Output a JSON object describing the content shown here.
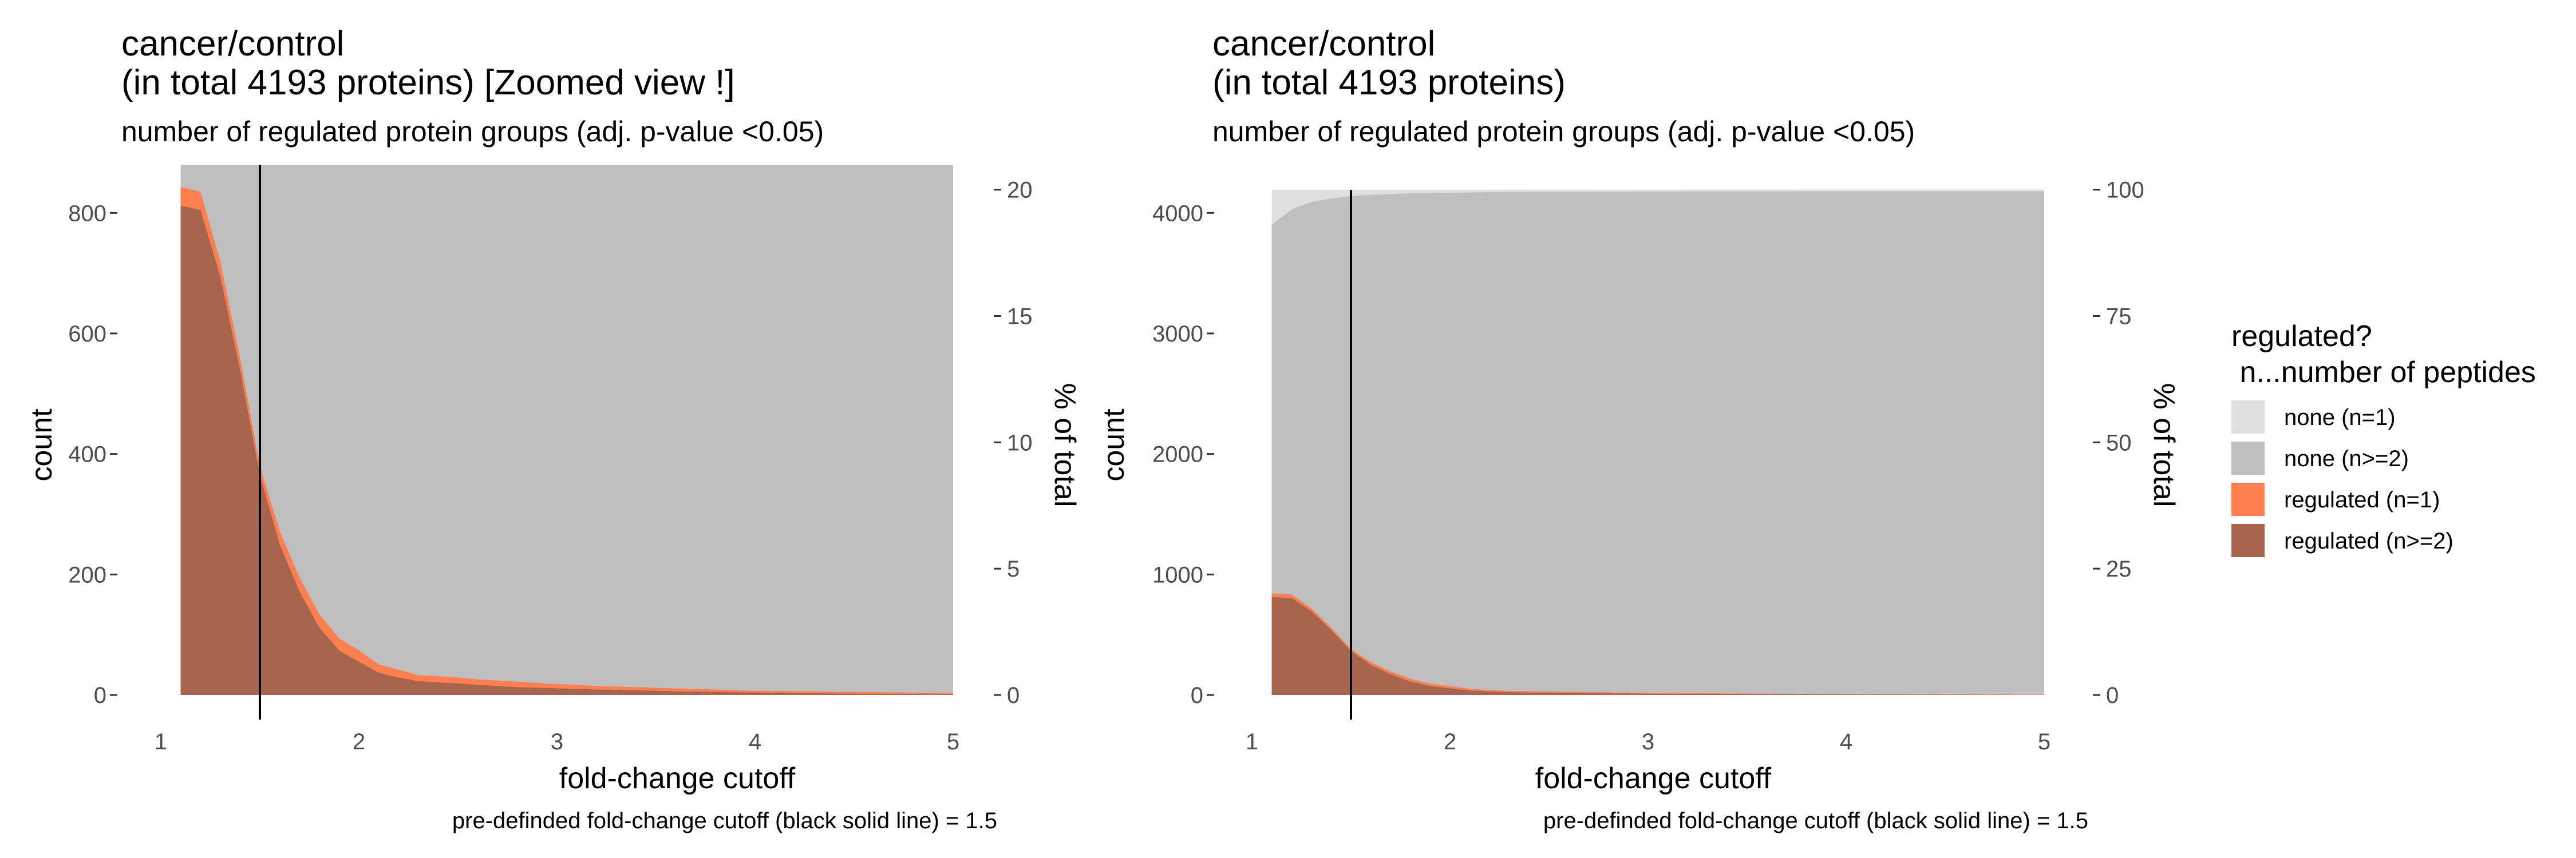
{
  "chart_data": [
    {
      "type": "area",
      "title_line1": "cancer/control",
      "title_line2": "(in total 4193 proteins)  [Zoomed view !]",
      "subtitle": "number of regulated protein groups (adj. p-value <0.05)",
      "xlabel": "fold-change cutoff",
      "ylabel": "count",
      "y2label": "% of total",
      "caption": "pre-definded fold-change cutoff (black solid line) = 1.5",
      "xlim": [
        1,
        5
      ],
      "ylim": [
        0,
        880
      ],
      "x_ticks": [
        1,
        2,
        3,
        4,
        5
      ],
      "y_ticks": [
        0,
        200,
        400,
        600,
        800
      ],
      "y2_ticks": [
        0,
        5,
        10,
        15,
        20
      ],
      "total": 4193,
      "cutoff": 1.5,
      "x": [
        1.1,
        1.2,
        1.3,
        1.4,
        1.5,
        1.6,
        1.7,
        1.8,
        1.9,
        2.0,
        2.1,
        2.2,
        2.3,
        2.4,
        2.5,
        2.6,
        2.7,
        2.8,
        2.9,
        3.0,
        3.2,
        3.4,
        3.6,
        3.8,
        4.0,
        4.5,
        5.0
      ],
      "series": [
        {
          "name": "regulated (n=1)",
          "color": "#FF7F50",
          "values": [
            843,
            835,
            720,
            560,
            380,
            272,
            195,
            134,
            94,
            74,
            51,
            42,
            33,
            31,
            29,
            26,
            24,
            22,
            20,
            18,
            15,
            13,
            11,
            9,
            7,
            5,
            3
          ]
        },
        {
          "name": "regulated (n>=2)",
          "color": "#A8654E",
          "values": [
            812,
            805,
            695,
            540,
            365,
            250,
            172,
            112,
            74,
            55,
            37,
            29,
            23,
            21,
            19,
            17,
            15,
            13,
            12,
            11,
            9,
            8,
            6,
            5,
            4,
            2,
            1
          ]
        }
      ]
    },
    {
      "type": "area",
      "title_line1": "cancer/control",
      "title_line2": "(in total 4193 proteins)",
      "subtitle": "number of regulated protein groups (adj. p-value <0.05)",
      "xlabel": "fold-change cutoff",
      "ylabel": "count",
      "y2label": "% of total",
      "caption": "pre-definded fold-change cutoff (black solid line) = 1.5",
      "xlim": [
        1,
        5
      ],
      "ylim": [
        0,
        4400
      ],
      "x_ticks": [
        1,
        2,
        3,
        4,
        5
      ],
      "y_ticks": [
        0,
        1000,
        2000,
        3000,
        4000
      ],
      "y2_ticks": [
        0,
        25,
        50,
        75,
        100
      ],
      "total": 4193,
      "cutoff": 1.5,
      "x": [
        1.1,
        1.2,
        1.3,
        1.4,
        1.5,
        1.6,
        1.7,
        1.8,
        1.9,
        2.0,
        2.1,
        2.2,
        2.3,
        2.4,
        2.5,
        2.6,
        2.7,
        2.8,
        2.9,
        3.0,
        3.2,
        3.4,
        3.6,
        3.8,
        4.0,
        4.5,
        5.0
      ],
      "series": [
        {
          "name": "none (n=1)",
          "color": "#DFDFDF",
          "values": [
            4193,
            4193,
            4193,
            4193,
            4193,
            4193,
            4193,
            4193,
            4193,
            4193,
            4193,
            4193,
            4193,
            4193,
            4193,
            4193,
            4193,
            4193,
            4193,
            4193,
            4193,
            4193,
            4193,
            4193,
            4193,
            4193,
            4193
          ]
        },
        {
          "name": "none (n>=2)",
          "color": "#BFBFBF",
          "values": [
            3900,
            4030,
            4090,
            4120,
            4140,
            4150,
            4157,
            4162,
            4166,
            4168,
            4170,
            4172,
            4173,
            4174,
            4175,
            4176,
            4176,
            4177,
            4177,
            4178,
            4178,
            4179,
            4179,
            4180,
            4180,
            4180,
            4180
          ]
        },
        {
          "name": "regulated (n=1)",
          "color": "#FF7F50",
          "values": [
            843,
            835,
            720,
            560,
            380,
            272,
            195,
            134,
            94,
            74,
            51,
            42,
            33,
            31,
            29,
            26,
            24,
            22,
            20,
            18,
            15,
            13,
            11,
            9,
            7,
            5,
            3
          ]
        },
        {
          "name": "regulated (n>=2)",
          "color": "#A8654E",
          "values": [
            812,
            805,
            695,
            540,
            365,
            250,
            172,
            112,
            74,
            55,
            37,
            29,
            23,
            21,
            19,
            17,
            15,
            13,
            12,
            11,
            9,
            8,
            6,
            5,
            4,
            2,
            1
          ]
        }
      ]
    }
  ],
  "legend": {
    "title_line1": "regulated?",
    "title_line2": " n...number of peptides",
    "items": [
      {
        "label": "none (n=1)",
        "color": "#DFDFDF"
      },
      {
        "label": "none (n>=2)",
        "color": "#BFBFBF"
      },
      {
        "label": "regulated (n=1)",
        "color": "#FF7F50"
      },
      {
        "label": "regulated (n>=2)",
        "color": "#A8654E"
      }
    ]
  }
}
